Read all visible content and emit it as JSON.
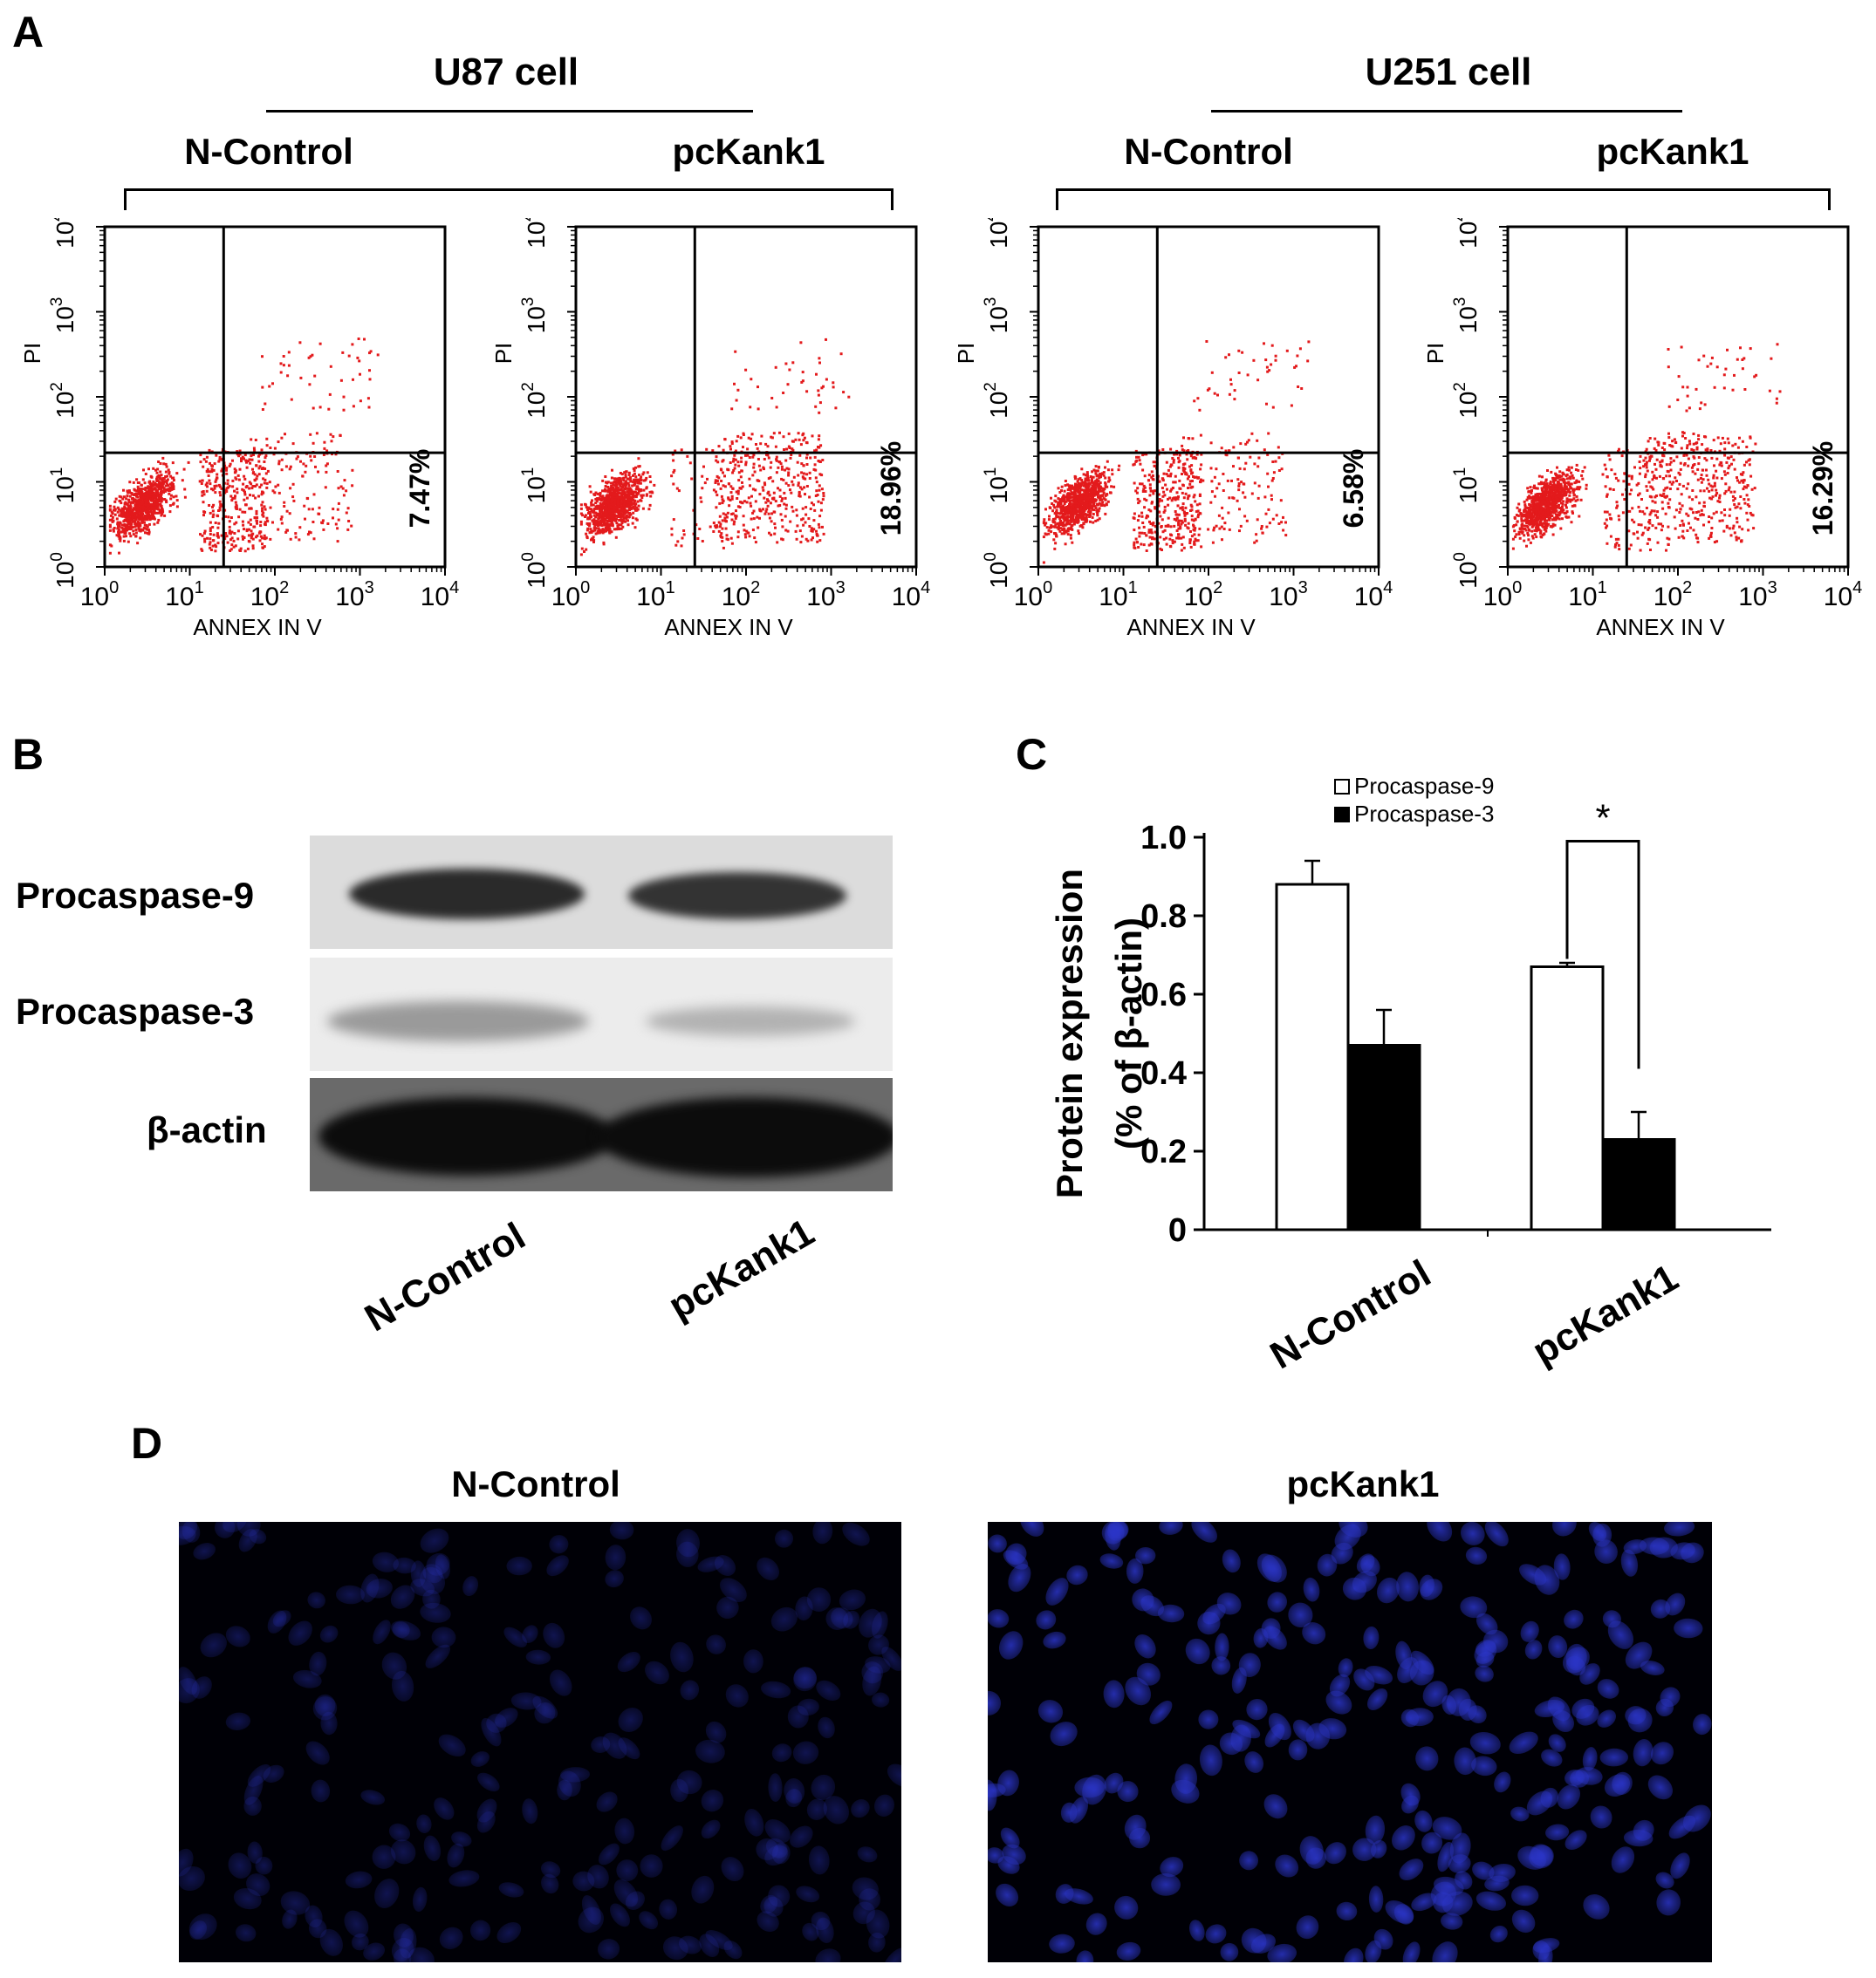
{
  "panel_letters": {
    "a": "A",
    "b": "B",
    "c": "C",
    "d": "D"
  },
  "panelA": {
    "groups": [
      {
        "label": "U87 cell",
        "conditions": [
          "N-Control",
          "pcKank1"
        ]
      },
      {
        "label": "U251 cell",
        "conditions": [
          "N-Control",
          "pcKank1"
        ]
      }
    ],
    "xlabel": "ANNEX IN V",
    "ylabel": "PI",
    "tick_labels": [
      "10^0",
      "10^1",
      "10^2",
      "10^3",
      "10^4"
    ],
    "percentages": [
      "7.47%",
      "18.96%",
      "6.58%",
      "16.29%"
    ],
    "dot_color": "#e31a1c"
  },
  "panelB": {
    "bands": [
      "Procaspase-9",
      "Procaspase-3",
      "β-actin"
    ],
    "lanes": [
      "N-Control",
      "pcKank1"
    ]
  },
  "panelD": {
    "titles": [
      "N-Control",
      "pcKank1"
    ],
    "nucleus_color": "#2b35c8"
  },
  "chart_data": [
    {
      "type": "scatter",
      "title": "",
      "xlabel": "ANNEX IN V",
      "ylabel": "PI",
      "xscale": "log",
      "yscale": "log",
      "xlim": [
        1,
        10000
      ],
      "ylim": [
        1,
        10000
      ],
      "plots": [
        {
          "group": "U87 cell",
          "condition": "N-Control",
          "lower_right_percent": 7.47
        },
        {
          "group": "U87 cell",
          "condition": "pcKank1",
          "lower_right_percent": 18.96
        },
        {
          "group": "U251 cell",
          "condition": "N-Control",
          "lower_right_percent": 6.58
        },
        {
          "group": "U251 cell",
          "condition": "pcKank1",
          "lower_right_percent": 16.29
        }
      ]
    },
    {
      "type": "bar",
      "title": "",
      "categories": [
        "N-Control",
        "pcKank1"
      ],
      "series": [
        {
          "name": "Procaspase-9",
          "values": [
            0.88,
            0.67
          ],
          "errors": [
            0.06,
            0.01
          ],
          "fill": "#ffffff"
        },
        {
          "name": "Procaspase-3",
          "values": [
            0.47,
            0.23
          ],
          "errors": [
            0.09,
            0.07
          ],
          "fill": "#000000"
        }
      ],
      "ylabel_lines": [
        "Protein expression",
        "(% of β-actin)"
      ],
      "ylim": [
        0,
        1.0
      ],
      "yticks": [
        "0",
        "0.2",
        "0.4",
        "0.6",
        "0.8",
        "1.0"
      ],
      "significance": "*",
      "legend_position": "top-left"
    }
  ]
}
